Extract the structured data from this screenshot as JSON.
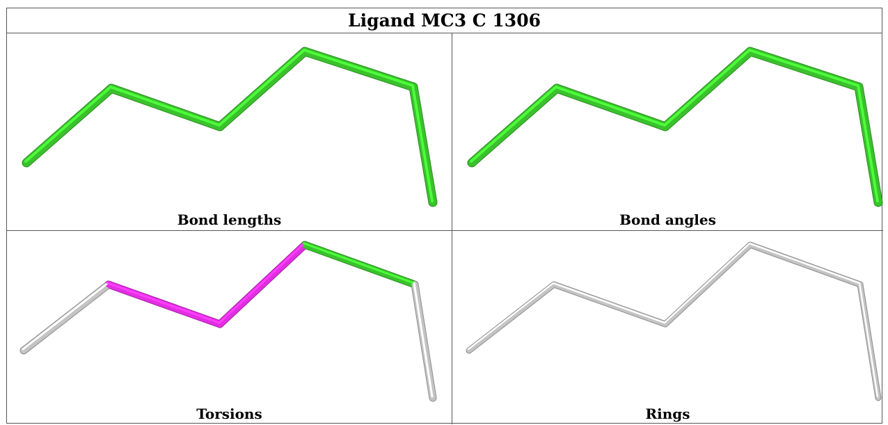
{
  "title": "Ligand MC3 C 1306",
  "panels": [
    {
      "id": "bond-lengths",
      "label": "Bond lengths",
      "bond_colors": [
        "#3ac22c",
        "#3ac22c",
        "#3ac22c",
        "#3ac22c",
        "#3ac22c",
        "#3ac22c"
      ]
    },
    {
      "id": "bond-angles",
      "label": "Bond angles",
      "bond_colors": [
        "#3ac22c",
        "#3ac22c",
        "#3ac22c",
        "#3ac22c",
        "#3ac22c",
        "#3ac22c"
      ]
    },
    {
      "id": "torsions",
      "label": "Torsions",
      "bond_colors": [
        "#c4c4c4",
        "#e22ee2",
        "#e22ee2",
        "#3ac22c",
        "#c4c4c4"
      ]
    },
    {
      "id": "rings",
      "label": "Rings",
      "bond_colors": [
        "#c4c4c4",
        "#c4c4c4",
        "#c4c4c4",
        "#c4c4c4",
        "#c4c4c4",
        "#c4c4c4"
      ]
    }
  ],
  "colors": {
    "green": "#3ac22c",
    "magenta": "#e22ee2",
    "grey": "#c4c4c4"
  }
}
